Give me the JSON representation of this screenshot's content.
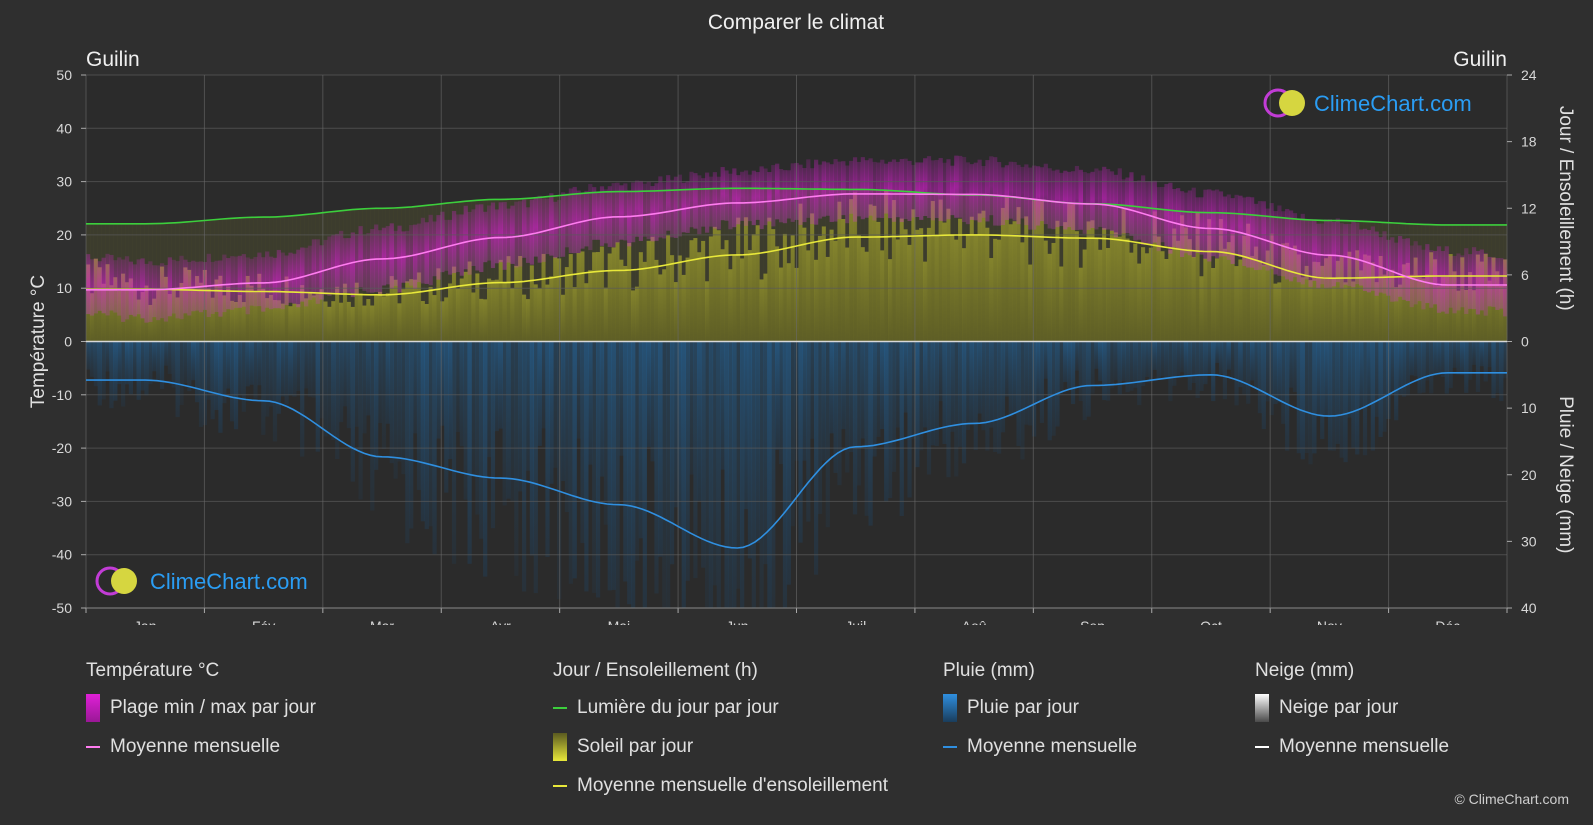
{
  "title": "Comparer le climat",
  "location_left": "Guilin",
  "location_right": "Guilin",
  "watermark": "ClimeChart.com",
  "copyright": "© ClimeChart.com",
  "colors": {
    "background": "#2f2f2f",
    "daylight": "#3ccf3c",
    "sunshine_mean": "#e8e83a",
    "sunshine_fill": "#9a9a2a",
    "temp_mean": "#ff7cf0",
    "temp_range": "#d81fd0",
    "rain_mean": "#2f8fe0",
    "rain_fill": "#1f5f94",
    "snow_mean": "#ffffff",
    "brand_blue": "#2a9df4"
  },
  "legend": {
    "temperature": {
      "heading": "Température °C",
      "items": [
        "Plage min / max par jour",
        "Moyenne mensuelle"
      ]
    },
    "sun": {
      "heading": "Jour / Ensoleillement (h)",
      "items": [
        "Lumière du jour par jour",
        "Soleil par jour",
        "Moyenne mensuelle d'ensoleillement"
      ]
    },
    "rain": {
      "heading": "Pluie (mm)",
      "items": [
        "Pluie par jour",
        "Moyenne mensuelle"
      ]
    },
    "snow": {
      "heading": "Neige (mm)",
      "items": [
        "Neige par jour",
        "Moyenne mensuelle"
      ]
    }
  },
  "chart_data": {
    "type": "line",
    "title": "Comparer le climat",
    "categories": [
      "Jan",
      "Fév",
      "Mar",
      "Avr",
      "Mai",
      "Jun",
      "Juil",
      "Aoû",
      "Sep",
      "Oct",
      "Nov",
      "Déc"
    ],
    "y_left": {
      "label": "Température °C",
      "range": [
        -50,
        50
      ],
      "ticks": [
        50,
        40,
        30,
        20,
        10,
        0,
        -10,
        -20,
        -30,
        -40,
        -50
      ]
    },
    "y_right_top": {
      "label": "Jour / Ensoleillement (h)",
      "range": [
        0,
        24
      ],
      "ticks": [
        24,
        18,
        12,
        6,
        0
      ]
    },
    "y_right_bottom": {
      "label": "Pluie / Neige (mm)",
      "range": [
        0,
        40
      ],
      "ticks": [
        0,
        10,
        20,
        30,
        40
      ]
    },
    "grid": true,
    "series": [
      {
        "name": "Lumière du jour par jour",
        "axis": "hours",
        "values": [
          10.6,
          11.2,
          12.0,
          12.8,
          13.5,
          13.8,
          13.7,
          13.2,
          12.4,
          11.6,
          10.9,
          10.5
        ]
      },
      {
        "name": "Moyenne mensuelle d'ensoleillement",
        "axis": "hours",
        "values": [
          4.7,
          4.5,
          4.2,
          5.3,
          6.4,
          7.8,
          9.4,
          9.6,
          9.3,
          8.1,
          5.7,
          5.9
        ]
      },
      {
        "name": "Moyenne mensuelle",
        "axis": "temperature",
        "values": [
          9.7,
          11.0,
          15.5,
          19.5,
          23.4,
          26.0,
          27.7,
          27.6,
          25.8,
          21.2,
          16.2,
          10.6
        ]
      },
      {
        "name": "Moyenne mensuelle",
        "axis": "rain_mm",
        "values": [
          5.8,
          8.9,
          17.3,
          20.5,
          24.5,
          31.0,
          15.8,
          12.3,
          6.6,
          5.0,
          11.2,
          4.7
        ]
      }
    ],
    "temp_range_daily": {
      "min": [
        5.5,
        6.8,
        10.8,
        15.3,
        19.6,
        22.9,
        24.2,
        23.9,
        21.8,
        16.9,
        11.8,
        7.1
      ],
      "max": [
        14.0,
        15.5,
        20.2,
        24.5,
        28.3,
        30.9,
        32.9,
        32.9,
        31.1,
        26.7,
        21.6,
        16.0
      ]
    }
  }
}
